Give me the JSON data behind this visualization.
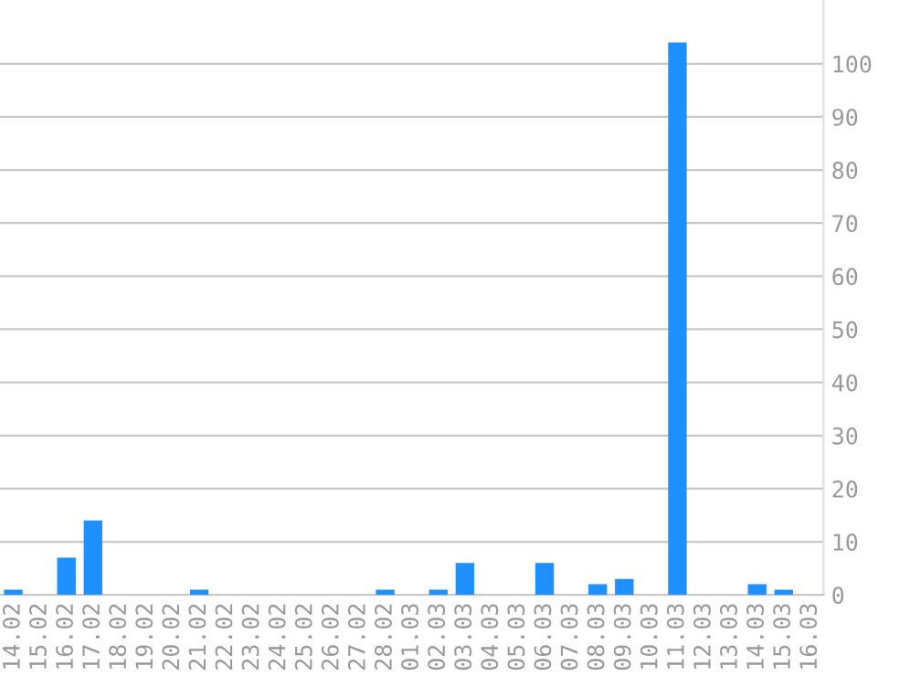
{
  "chart_data": {
    "type": "bar",
    "categories": [
      "14.02",
      "15.02",
      "16.02",
      "17.02",
      "18.02",
      "19.02",
      "20.02",
      "21.02",
      "22.02",
      "23.02",
      "24.02",
      "25.02",
      "26.02",
      "27.02",
      "28.02",
      "01.03",
      "02.03",
      "03.03",
      "04.03",
      "05.03",
      "06.03",
      "07.03",
      "08.03",
      "09.03",
      "10.03",
      "11.03",
      "12.03",
      "13.03",
      "14.03",
      "15.03",
      "16.03"
    ],
    "values": [
      1,
      0,
      7,
      14,
      0,
      0,
      0,
      1,
      0,
      0,
      0,
      0,
      0,
      0,
      1,
      0,
      1,
      6,
      0,
      0,
      6,
      0,
      2,
      3,
      0,
      104,
      0,
      0,
      2,
      1,
      0
    ],
    "color": "#1e90ff",
    "ylim": [
      0,
      112
    ],
    "yticks": [
      0,
      10,
      20,
      30,
      40,
      50,
      60,
      70,
      80,
      90,
      100
    ],
    "grid": "y"
  }
}
